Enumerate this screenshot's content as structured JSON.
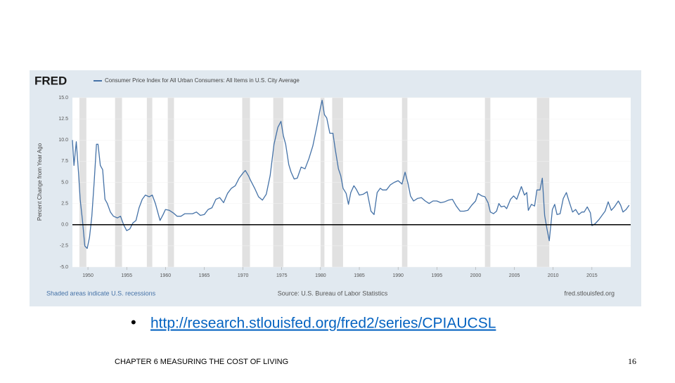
{
  "chart_data": {
    "type": "line",
    "logo": "FRED",
    "axis_label_y": "Percent Change from Year Ago",
    "note_left": "Shaded areas indicate U.S. recessions",
    "note_center": "Source: U.S. Bureau of Labor Statistics",
    "note_right": "fred.stlouisfed.org",
    "xlim": [
      1948,
      2020
    ],
    "xticks": [
      1950,
      1955,
      1960,
      1965,
      1970,
      1975,
      1980,
      1985,
      1990,
      1995,
      2000,
      2005,
      2010,
      2015
    ],
    "ylim": [
      -5,
      15
    ],
    "yticks": [
      {
        "value": 15,
        "label": "15.0"
      },
      12.5,
      {
        "value": 10,
        "label": "10.0"
      },
      7.5,
      {
        "value": 5,
        "label": "5.0"
      },
      2.5,
      {
        "value": 0,
        "label": "0.0"
      },
      -2.5,
      {
        "value": -5,
        "label": "-5.0"
      }
    ],
    "recessions": [
      [
        1948.9,
        1949.8
      ],
      [
        1953.5,
        1954.4
      ],
      [
        1957.6,
        1958.3
      ],
      [
        1960.3,
        1961.1
      ],
      [
        1969.9,
        1970.9
      ],
      [
        1973.9,
        1975.2
      ],
      [
        1980.0,
        1980.5
      ],
      [
        1981.5,
        1982.9
      ],
      [
        1990.5,
        1991.2
      ],
      [
        2001.2,
        2001.9
      ],
      [
        2007.9,
        2009.5
      ]
    ],
    "recession_color": "#e1e1e1",
    "x": [
      1948.0,
      1948.2,
      1948.5,
      1948.8,
      1949.0,
      1949.3,
      1949.6,
      1949.9,
      1950.2,
      1950.5,
      1950.8,
      1951.1,
      1951.3,
      1951.6,
      1951.9,
      1952.2,
      1952.5,
      1952.9,
      1953.3,
      1953.8,
      1954.2,
      1954.6,
      1955.0,
      1955.4,
      1955.8,
      1956.2,
      1956.6,
      1957.0,
      1957.4,
      1957.9,
      1958.3,
      1958.7,
      1959.0,
      1959.3,
      1959.7,
      1960.0,
      1960.5,
      1961.0,
      1961.5,
      1962.0,
      1962.5,
      1963.0,
      1963.5,
      1964.0,
      1964.5,
      1965.0,
      1965.5,
      1966.0,
      1966.5,
      1967.0,
      1967.5,
      1968.0,
      1968.5,
      1969.0,
      1969.5,
      1970.0,
      1970.3,
      1970.7,
      1971.0,
      1971.5,
      1972.0,
      1972.5,
      1973.0,
      1973.5,
      1974.0,
      1974.5,
      1974.9,
      1975.2,
      1975.5,
      1975.9,
      1976.2,
      1976.6,
      1977.0,
      1977.5,
      1978.0,
      1978.5,
      1979.0,
      1979.5,
      1980.0,
      1980.2,
      1980.5,
      1980.8,
      1981.2,
      1981.6,
      1981.9,
      1982.3,
      1982.6,
      1982.9,
      1983.3,
      1983.6,
      1983.9,
      1984.3,
      1984.6,
      1985.0,
      1985.5,
      1986.0,
      1986.5,
      1986.9,
      1987.3,
      1987.7,
      1988.0,
      1988.5,
      1989.0,
      1989.5,
      1990.0,
      1990.5,
      1990.9,
      1991.3,
      1991.6,
      1992.0,
      1992.5,
      1993.0,
      1993.5,
      1994.0,
      1994.5,
      1995.0,
      1995.5,
      1996.0,
      1996.5,
      1997.0,
      1997.5,
      1998.0,
      1998.5,
      1999.0,
      1999.5,
      2000.0,
      2000.3,
      2000.8,
      2001.2,
      2001.6,
      2001.9,
      2002.3,
      2002.7,
      2003.0,
      2003.3,
      2003.7,
      2004.0,
      2004.5,
      2004.9,
      2005.3,
      2005.7,
      2005.9,
      2006.3,
      2006.6,
      2006.8,
      2007.2,
      2007.6,
      2007.9,
      2008.3,
      2008.6,
      2008.9,
      2009.2,
      2009.5,
      2009.9,
      2010.2,
      2010.5,
      2010.9,
      2011.3,
      2011.7,
      2012.0,
      2012.5,
      2012.9,
      2013.3,
      2013.7,
      2014.0,
      2014.4,
      2014.8,
      2015.0,
      2015.4,
      2015.9,
      2016.3,
      2016.7,
      2017.1,
      2017.5,
      2017.9,
      2018.4,
      2018.7,
      2019.0,
      2019.4,
      2019.8
    ],
    "series": [
      {
        "name": "Consumer Price Index for All Urban Consumers: All Items in U.S. City Average",
        "color": "#4572a7",
        "values": [
          10.0,
          7,
          9.8,
          6,
          3,
          0.5,
          -2.5,
          -2.8,
          -1.5,
          1,
          5,
          9.5,
          9.5,
          7,
          6.5,
          3,
          2.5,
          1.5,
          1,
          0.8,
          1.0,
          0,
          -0.7,
          -0.5,
          0.2,
          0.5,
          2,
          3,
          3.5,
          3.3,
          3.5,
          2.5,
          1.5,
          0.5,
          1.2,
          1.8,
          1.7,
          1.4,
          1.0,
          1.0,
          1.3,
          1.3,
          1.3,
          1.5,
          1.1,
          1.2,
          1.8,
          2.0,
          3.0,
          3.2,
          2.6,
          3.7,
          4.3,
          4.6,
          5.5,
          6.1,
          6.4,
          5.8,
          5.2,
          4.3,
          3.3,
          2.9,
          3.6,
          5.8,
          9.5,
          11.5,
          12.2,
          10.5,
          9.5,
          7.1,
          6.2,
          5.4,
          5.5,
          6.8,
          6.6,
          7.8,
          9.3,
          11.5,
          13.9,
          14.7,
          13.0,
          12.6,
          10.8,
          10.8,
          8.9,
          6.6,
          5.8,
          4.3,
          3.7,
          2.4,
          3.8,
          4.6,
          4.2,
          3.5,
          3.6,
          3.9,
          1.6,
          1.2,
          3.8,
          4.3,
          4.1,
          4.1,
          4.7,
          5.0,
          5.2,
          4.8,
          6.2,
          4.8,
          3.4,
          2.8,
          3.1,
          3.2,
          2.8,
          2.5,
          2.8,
          2.8,
          2.6,
          2.7,
          2.9,
          3.0,
          2.2,
          1.6,
          1.6,
          1.7,
          2.3,
          2.8,
          3.7,
          3.4,
          3.3,
          2.6,
          1.5,
          1.3,
          1.6,
          2.5,
          2.1,
          2.2,
          1.9,
          3.0,
          3.4,
          3.0,
          4.0,
          4.5,
          3.5,
          3.8,
          1.7,
          2.4,
          2.2,
          4.1,
          4.1,
          5.5,
          1.1,
          -0.5,
          -1.9,
          1.8,
          2.4,
          1.2,
          1.3,
          3.1,
          3.8,
          2.9,
          1.5,
          1.8,
          1.2,
          1.5,
          1.5,
          2.1,
          1.4,
          -0.1,
          0.1,
          0.6,
          1.1,
          1.6,
          2.7,
          1.7,
          2.1,
          2.8,
          2.3,
          1.5,
          1.8,
          2.3
        ]
      }
    ]
  },
  "link": "http://research.stlouisfed.org/fred2/series/CPIAUCSL",
  "footer": "CHAPTER 6 MEASURING THE COST OF LIVING",
  "page_number": "16"
}
